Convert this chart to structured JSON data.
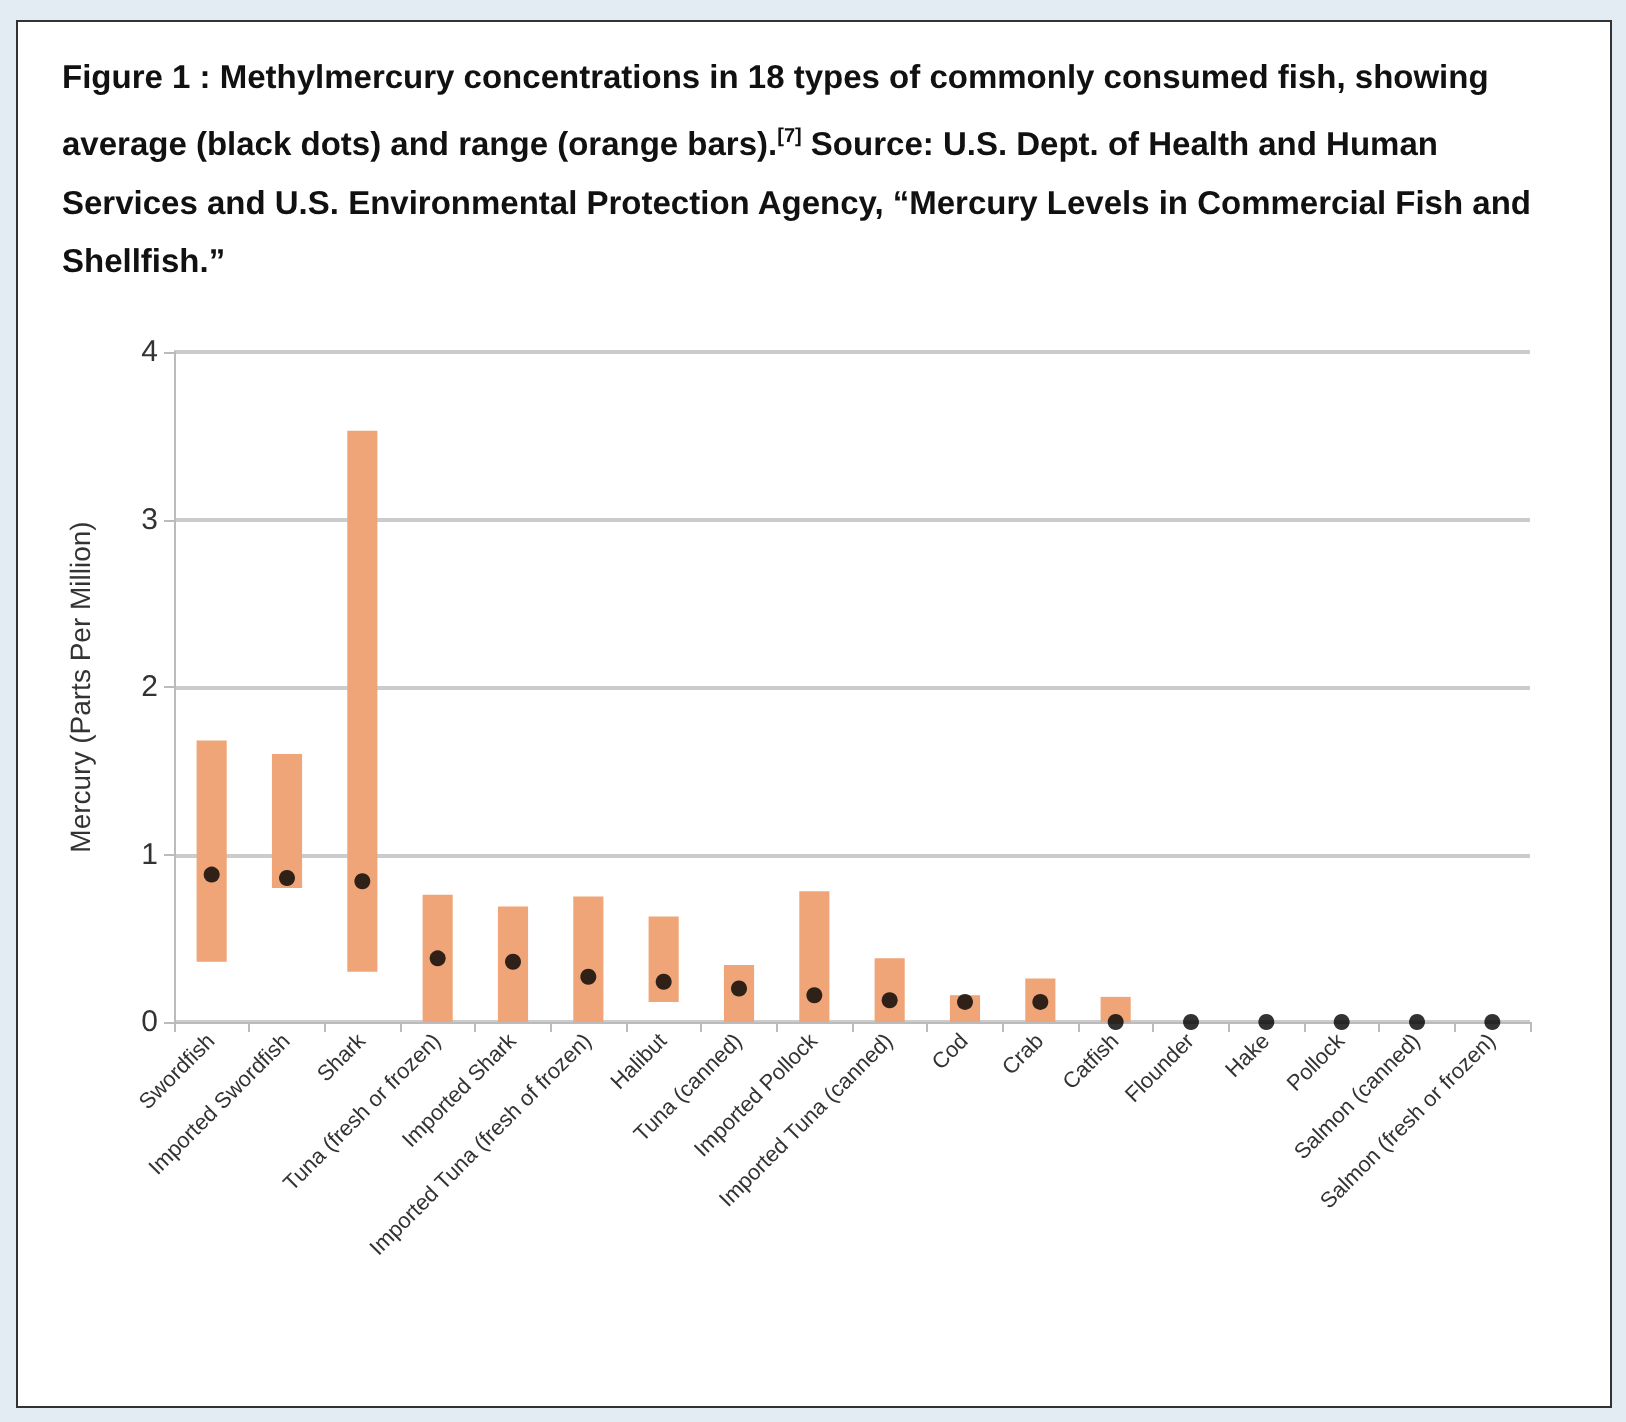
{
  "chart_data": {
    "type": "bar",
    "title": "Figure 1 : Methylmercury concentrations in 18 types of commonly consumed fish, showing average (black dots) and range (orange bars).$^{[7]}$ Source: U.S. Dept. of Health and Human Services and U.S. Environmental Protection Agency, “Mercury Levels in Commercial Fish and Shellfish.”",
    "ylabel": "Mercury (Parts Per Million)",
    "categories": [
      "Swordfish",
      "Imported Swordfish",
      "Shark",
      "Tuna (fresh or frozen)",
      "Imported Shark",
      "Imported Tuna (fresh of frozen)",
      "Halibut",
      "Tuna (canned)",
      "Imported Pollock",
      "Imported Tuna (canned)",
      "Cod",
      "Crab",
      "Catfish",
      "Flounder",
      "Hake",
      "Pollock",
      "Salmon (canned)",
      "Salmon (fresh or frozen)"
    ],
    "series": [
      {
        "type": "bar",
        "color": "#f0a578",
        "base": [
          0.36,
          0.8,
          0.3,
          0,
          0,
          0,
          0.12,
          0,
          0,
          0,
          0,
          0,
          0,
          null,
          null,
          null,
          null,
          null
        ],
        "values": [
          1.32,
          0.8,
          3.23,
          0.76,
          0.69,
          0.75,
          0.51,
          0.34,
          0.78,
          0.38,
          0.16,
          0.26,
          0.15,
          null,
          null,
          null,
          null,
          null
        ]
      },
      {
        "type": "scatter",
        "color": "#000000",
        "marker": "circle",
        "x": [
          "Swordfish",
          "Imported Swordfish",
          "Shark",
          "Tuna (fresh or frozen)",
          "Imported Shark",
          "Imported Tuna (fresh of frozen)",
          "Halibut",
          "Tuna (canned)",
          "Imported Pollock",
          "Imported Tuna (canned)",
          "Cod",
          "Crab",
          "Catfish",
          "Flounder",
          "Hake",
          "Pollock",
          "Salmon (canned)",
          "Salmon (fresh or frozen)"
        ],
        "values": [
          0.88,
          0.86,
          0.84,
          0.38,
          0.36,
          0.27,
          0.24,
          0.2,
          0.16,
          0.13,
          0.12,
          0.12,
          0,
          0,
          0,
          0,
          0,
          0
        ]
      }
    ],
    "ylim": [
      0,
      4
    ],
    "yticks": [
      0,
      1,
      2,
      3,
      4
    ],
    "grid": "y"
  }
}
